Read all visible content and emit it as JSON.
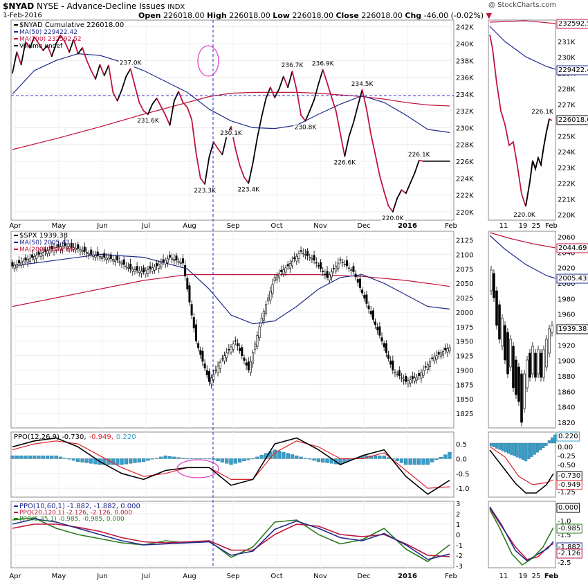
{
  "header": {
    "symbol": "$NYAD",
    "name": "NYSE - Advance-Decline Issues",
    "exchange": "INDX",
    "date": "1-Feb-2016",
    "open_label": "Open",
    "open": "226018.00",
    "high_label": "High",
    "high": "226018.00",
    "low_label": "Low",
    "low": "226018.00",
    "close_label": "Close",
    "close": "226018.00",
    "chg_label": "Chg",
    "chg": "-46.00 (-0.02%)",
    "watermark": "@ StockCharts.com"
  },
  "colors": {
    "price": "#000000",
    "ma50": "#1f2a8c",
    "ma200": "#c0143c",
    "ppo_hist": "#3a9ec9",
    "ppo_signal": "#e0202a",
    "green": "#2a7a1e",
    "annotation": "#e040c8",
    "crosshair": "#2424c8"
  },
  "x_axis": {
    "labels": [
      "Apr",
      "May",
      "Jun",
      "Jul",
      "Aug",
      "Sep",
      "Oct",
      "Nov",
      "Dec",
      "2016",
      "Feb"
    ],
    "zoom_labels": [
      "11",
      "19",
      "25",
      "Feb"
    ]
  },
  "chart_data": [
    {
      "type": "line",
      "panel": "nyad",
      "legend": [
        "$NYAD Cumulative 226018.00",
        "MA(50) 229422.42",
        "MA(200) 232592.52",
        "Volume undef"
      ],
      "ylim": [
        219000,
        242800
      ],
      "yticks": [
        "242K",
        "240K",
        "238K",
        "236K",
        "234K",
        "232K",
        "230K",
        "228K",
        "226K",
        "224K",
        "222K",
        "220K"
      ],
      "ytick_values": [
        242000,
        240000,
        238000,
        236000,
        234000,
        232000,
        230000,
        228000,
        226000,
        224000,
        222000,
        220000
      ],
      "annotations": [
        {
          "label": "237.0K",
          "value": 237000
        },
        {
          "label": "231.6K",
          "value": 231600
        },
        {
          "label": "223.3K",
          "value": 223300
        },
        {
          "label": "230.1K",
          "value": 230100
        },
        {
          "label": "223.4K",
          "value": 223400
        },
        {
          "label": "236.7K",
          "value": 236700
        },
        {
          "label": "230.8K",
          "value": 230800
        },
        {
          "label": "236.9K",
          "value": 236900
        },
        {
          "label": "226.6K",
          "value": 226600
        },
        {
          "label": "234.5K",
          "value": 234500
        },
        {
          "label": "220.0K",
          "value": 220000
        },
        {
          "label": "226.1K",
          "value": 226100
        }
      ],
      "series": [
        {
          "name": "$NYAD Cumulative 226018.00",
          "x": [
            0,
            1,
            2,
            3,
            4,
            5,
            6,
            7,
            8,
            9,
            10,
            11,
            12,
            13,
            14,
            15,
            16,
            17,
            18,
            19,
            20,
            21,
            22,
            23,
            24,
            25,
            26,
            27,
            28,
            29,
            30,
            31,
            32,
            33,
            34,
            35,
            36,
            37,
            38,
            39,
            40,
            41,
            42,
            43,
            44,
            45,
            46,
            47,
            48,
            49,
            50,
            51,
            52,
            53,
            54,
            55,
            56,
            57,
            58,
            59,
            60,
            61,
            62,
            63,
            64,
            65,
            66,
            67,
            68,
            69,
            70,
            71,
            72,
            73,
            74,
            75,
            76,
            77,
            78,
            79,
            80,
            81,
            82,
            83,
            84,
            85,
            86,
            87,
            88,
            89,
            90,
            91,
            92,
            93,
            94,
            95,
            96,
            97,
            98,
            99,
            100
          ],
          "values": [
            236500,
            239000,
            237500,
            240200,
            239500,
            240800,
            240000,
            239200,
            239800,
            238500,
            240000,
            241000,
            240200,
            239000,
            240500,
            238800,
            239500,
            238000,
            236800,
            235800,
            237500,
            236200,
            237400,
            234200,
            233200,
            234500,
            236100,
            237000,
            235000,
            233000,
            232000,
            231600,
            232800,
            233500,
            232500,
            231500,
            230300,
            233200,
            234300,
            233000,
            232400,
            231000,
            227000,
            224000,
            223300,
            226500,
            228300,
            227500,
            226800,
            229000,
            230100,
            227500,
            225500,
            224100,
            223400,
            225800,
            228800,
            231300,
            233500,
            234800,
            233600,
            234600,
            236100,
            234800,
            236700,
            234500,
            231500,
            230800,
            232000,
            233300,
            235200,
            236900,
            235300,
            233600,
            232000,
            229300,
            226600,
            229000,
            230600,
            232600,
            234500,
            232200,
            229200,
            226800,
            224300,
            222400,
            220700,
            220000,
            221600,
            222600,
            222200,
            223400,
            224600,
            226100,
            226018,
            226018,
            226018,
            226018,
            226018,
            226018,
            226018
          ]
        },
        {
          "name": "MA(50) 229422.42",
          "x": [
            0,
            5,
            10,
            15,
            20,
            25,
            30,
            35,
            40,
            45,
            50,
            55,
            60,
            65,
            70,
            75,
            80,
            85,
            90,
            95,
            100
          ],
          "values": [
            234000,
            236800,
            238000,
            238800,
            238600,
            237800,
            236800,
            235500,
            234200,
            232200,
            230800,
            230000,
            229900,
            230300,
            231600,
            232800,
            233800,
            233000,
            231500,
            229800,
            229422
          ]
        },
        {
          "name": "MA(200) 232592.52",
          "x": [
            0,
            10,
            20,
            30,
            40,
            45,
            50,
            55,
            60,
            65,
            70,
            75,
            80,
            85,
            90,
            95,
            100
          ],
          "values": [
            227400,
            228700,
            230100,
            231600,
            233000,
            233700,
            234100,
            234200,
            234200,
            234200,
            234100,
            233900,
            233700,
            233400,
            233000,
            232700,
            232592
          ]
        }
      ]
    },
    {
      "type": "line",
      "panel": "spx",
      "legend": [
        "$SPX 1939.38",
        "MA(50) 2005.43",
        "MA(200) 2044.69"
      ],
      "ylim": [
        1800,
        2140
      ],
      "yticks": [
        "2125",
        "2100",
        "2075",
        "2050",
        "2025",
        "2000",
        "1975",
        "1950",
        "1925",
        "1900",
        "1875",
        "1850",
        "1825"
      ],
      "ytick_values": [
        2125,
        2100,
        2075,
        2050,
        2025,
        2000,
        1975,
        1950,
        1925,
        1900,
        1875,
        1850,
        1825
      ],
      "series": [
        {
          "name": "$SPX 1939.38",
          "x": [
            0,
            3,
            6,
            9,
            12,
            15,
            18,
            21,
            24,
            27,
            30,
            33,
            36,
            39,
            42,
            45,
            48,
            51,
            54,
            57,
            60,
            63,
            66,
            69,
            72,
            75,
            78,
            81,
            84,
            87,
            90,
            93,
            96,
            100
          ],
          "values": [
            2080,
            2090,
            2100,
            2110,
            2115,
            2110,
            2100,
            2095,
            2090,
            2075,
            2070,
            2080,
            2095,
            2085,
            1950,
            1880,
            1920,
            1950,
            1900,
            1990,
            2060,
            2080,
            2105,
            2090,
            2060,
            2090,
            2070,
            2015,
            1960,
            1900,
            1880,
            1890,
            1920,
            1939.38
          ]
        },
        {
          "name": "MA(50) 2005.43",
          "x": [
            0,
            10,
            20,
            30,
            40,
            45,
            50,
            55,
            60,
            65,
            70,
            75,
            80,
            85,
            90,
            95,
            100
          ],
          "values": [
            2080,
            2090,
            2100,
            2095,
            2075,
            2040,
            1995,
            1980,
            1985,
            2010,
            2040,
            2060,
            2065,
            2050,
            2030,
            2010,
            2005.43
          ]
        },
        {
          "name": "MA(200) 2044.69",
          "x": [
            0,
            10,
            20,
            30,
            40,
            50,
            60,
            70,
            80,
            90,
            100
          ],
          "values": [
            2010,
            2025,
            2040,
            2055,
            2065,
            2065,
            2065,
            2065,
            2062,
            2055,
            2044.69
          ]
        }
      ]
    },
    {
      "type": "line",
      "panel": "ppo1",
      "legend": [
        "PPO(12,26,9) -0.730,",
        "-0.949,",
        "0.220"
      ],
      "ylim": [
        -1.3,
        0.9
      ],
      "yticks": [
        "0.5",
        "0.0",
        "-0.5",
        "-1.0"
      ],
      "ytick_values": [
        0.5,
        0,
        -0.5,
        -1.0
      ],
      "series": [
        {
          "name": "PPO(12,26,9) -0.730,",
          "x": [
            0,
            5,
            10,
            15,
            20,
            25,
            30,
            35,
            40,
            45,
            50,
            55,
            60,
            65,
            70,
            75,
            80,
            85,
            90,
            95,
            100
          ],
          "values": [
            0.4,
            0.6,
            0.7,
            0.4,
            -0.1,
            -0.5,
            -0.7,
            -0.4,
            -0.3,
            -0.3,
            -0.9,
            -0.7,
            0.5,
            0.7,
            0.3,
            -0.2,
            0.1,
            0.3,
            -0.6,
            -1.2,
            -0.73
          ]
        },
        {
          "name": "-0.949,",
          "x": [
            0,
            5,
            10,
            15,
            20,
            25,
            30,
            35,
            40,
            45,
            50,
            55,
            60,
            65,
            70,
            75,
            80,
            85,
            90,
            95,
            100
          ],
          "values": [
            0.3,
            0.5,
            0.6,
            0.5,
            0.1,
            -0.3,
            -0.6,
            -0.5,
            -0.3,
            -0.3,
            -0.7,
            -0.7,
            0.2,
            0.6,
            0.4,
            0.0,
            0.0,
            0.2,
            -0.4,
            -1.0,
            -0.949
          ]
        },
        {
          "name": "0.220",
          "x": [
            0,
            5,
            10,
            15,
            20,
            25,
            30,
            35,
            40,
            45,
            50,
            55,
            60,
            65,
            70,
            75,
            80,
            85,
            90,
            95,
            100
          ],
          "values": [
            0.1,
            0.1,
            0.1,
            -0.1,
            -0.2,
            -0.2,
            -0.1,
            0.1,
            0.0,
            0.0,
            -0.2,
            0.0,
            0.3,
            0.1,
            -0.1,
            -0.2,
            0.1,
            0.1,
            -0.2,
            -0.2,
            0.22
          ]
        }
      ]
    },
    {
      "type": "line",
      "panel": "ppo2",
      "legend": [
        "PPO(10,60,1) -1.882, -1.882, 0.000",
        "PPO(20,120,1) -2.126, -2.126, 0.000",
        "PPO(5,35,1) -0.985, -0.985, 0.000"
      ],
      "ylim": [
        -3.2,
        3.2
      ],
      "yticks": [
        "3",
        "2",
        "1",
        "0",
        "-1",
        "-2",
        "-3"
      ],
      "ytick_values": [
        3,
        2,
        1,
        0,
        -1,
        -2,
        -3
      ],
      "series": [
        {
          "name": "PPO(10,60,1) -1.882, -1.882, 0.000",
          "x": [
            0,
            5,
            10,
            15,
            20,
            25,
            30,
            35,
            40,
            45,
            50,
            55,
            60,
            65,
            70,
            75,
            80,
            85,
            90,
            95,
            100
          ],
          "values": [
            1.0,
            1.5,
            1.2,
            0.6,
            0.0,
            -0.6,
            -1.0,
            -0.9,
            -0.8,
            -0.7,
            -2.0,
            -1.6,
            0.5,
            1.3,
            0.6,
            -0.3,
            -0.6,
            0.1,
            -1.0,
            -2.4,
            -1.882
          ]
        },
        {
          "name": "PPO(20,120,1) -2.126, -2.126, 0.000",
          "x": [
            0,
            5,
            10,
            15,
            20,
            25,
            30,
            35,
            40,
            45,
            50,
            55,
            60,
            65,
            70,
            75,
            80,
            85,
            90,
            95,
            100
          ],
          "values": [
            0.6,
            1.0,
            1.0,
            0.7,
            0.3,
            -0.3,
            -0.7,
            -0.8,
            -0.7,
            -0.6,
            -1.5,
            -1.5,
            0.0,
            1.0,
            0.8,
            0.0,
            -0.2,
            0.0,
            -0.9,
            -2.0,
            -2.126
          ]
        },
        {
          "name": "PPO(5,35,1) -0.985, -0.985, 0.000",
          "x": [
            0,
            5,
            10,
            15,
            20,
            25,
            30,
            35,
            40,
            45,
            50,
            55,
            60,
            65,
            70,
            75,
            80,
            85,
            90,
            95,
            100
          ],
          "values": [
            1.4,
            1.6,
            0.6,
            0.0,
            -0.4,
            -0.8,
            -1.0,
            -0.6,
            -0.8,
            -0.6,
            -2.2,
            -1.2,
            1.2,
            1.4,
            0.0,
            -0.9,
            -0.5,
            0.6,
            -1.4,
            -2.6,
            -0.985
          ]
        }
      ]
    }
  ],
  "zoom_readouts": {
    "nyad": {
      "ma200": "232592.5",
      "ma50": "229422.4",
      "last": "226018.0",
      "peak_label": "226.1K",
      "low_label": "220.0K",
      "yticks": [
        "232K",
        "231K",
        "230K",
        "229K",
        "228K",
        "227K",
        "226K",
        "225K",
        "224K",
        "223K",
        "222K",
        "221K",
        "220K"
      ]
    },
    "spx": {
      "ma200": "2044.69",
      "ma50": "2005.43",
      "last": "1939.38",
      "yticks": [
        "2060",
        "2040",
        "2020",
        "2000",
        "1980",
        "1960",
        "1940",
        "1920",
        "1900",
        "1880",
        "1860",
        "1840",
        "1820"
      ]
    },
    "ppo1": {
      "hist": "0.220",
      "ppo": "-0.730",
      "signal": "-0.949",
      "yticks": [
        "0.25",
        "0.00",
        "-0.25",
        "-0.50",
        "-0.75",
        "-1.00",
        "-1.25"
      ]
    },
    "ppo2": {
      "a": "0.000",
      "b": "-0.985",
      "c": "-1.882",
      "d": "-2.126",
      "yticks": [
        "-0.5",
        "-1.0",
        "-1.5",
        "-2.0",
        "-2.5"
      ]
    }
  }
}
